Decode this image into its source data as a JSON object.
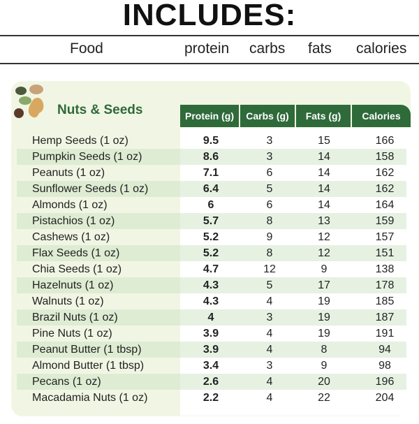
{
  "title": "INCLUDES:",
  "header": {
    "food": "Food",
    "protein": "protein",
    "carbs": "carbs",
    "fats": "fats",
    "calories": "calories"
  },
  "section": {
    "name": "Nuts & Seeds",
    "icon": "nuts-seeds-icon",
    "accent": "#2f6a3a",
    "background": "#f1f6e4",
    "columns": [
      "Protein (g)",
      "Carbs (g)",
      "Fats (g)",
      "Calories"
    ]
  },
  "rows": [
    {
      "food": "Hemp Seeds (1 oz)",
      "protein": "9.5",
      "carbs": "3",
      "fats": "15",
      "calories": "166"
    },
    {
      "food": "Pumpkin Seeds (1 oz)",
      "protein": "8.6",
      "carbs": "3",
      "fats": "14",
      "calories": "158"
    },
    {
      "food": "Peanuts (1 oz)",
      "protein": "7.1",
      "carbs": "6",
      "fats": "14",
      "calories": "162"
    },
    {
      "food": "Sunflower Seeds (1 oz)",
      "protein": "6.4",
      "carbs": "5",
      "fats": "14",
      "calories": "162"
    },
    {
      "food": "Almonds (1 oz)",
      "protein": "6",
      "carbs": "6",
      "fats": "14",
      "calories": "164"
    },
    {
      "food": "Pistachios (1 oz)",
      "protein": "5.7",
      "carbs": "8",
      "fats": "13",
      "calories": "159"
    },
    {
      "food": "Cashews (1 oz)",
      "protein": "5.2",
      "carbs": "9",
      "fats": "12",
      "calories": "157"
    },
    {
      "food": "Flax Seeds (1 oz)",
      "protein": "5.2",
      "carbs": "8",
      "fats": "12",
      "calories": "151"
    },
    {
      "food": "Chia Seeds (1 oz)",
      "protein": "4.7",
      "carbs": "12",
      "fats": "9",
      "calories": "138"
    },
    {
      "food": "Hazelnuts (1 oz)",
      "protein": "4.3",
      "carbs": "5",
      "fats": "17",
      "calories": "178"
    },
    {
      "food": "Walnuts (1 oz)",
      "protein": "4.3",
      "carbs": "4",
      "fats": "19",
      "calories": "185"
    },
    {
      "food": "Brazil Nuts (1 oz)",
      "protein": "4",
      "carbs": "3",
      "fats": "19",
      "calories": "187"
    },
    {
      "food": "Pine Nuts (1 oz)",
      "protein": "3.9",
      "carbs": "4",
      "fats": "19",
      "calories": "191"
    },
    {
      "food": "Peanut Butter (1 tbsp)",
      "protein": "3.9",
      "carbs": "4",
      "fats": "8",
      "calories": "94"
    },
    {
      "food": "Almond Butter (1 tbsp)",
      "protein": "3.4",
      "carbs": "3",
      "fats": "9",
      "calories": "98"
    },
    {
      "food": "Pecans (1 oz)",
      "protein": "2.6",
      "carbs": "4",
      "fats": "20",
      "calories": "196"
    },
    {
      "food": "Macadamia Nuts (1 oz)",
      "protein": "2.2",
      "carbs": "4",
      "fats": "22",
      "calories": "204"
    }
  ]
}
